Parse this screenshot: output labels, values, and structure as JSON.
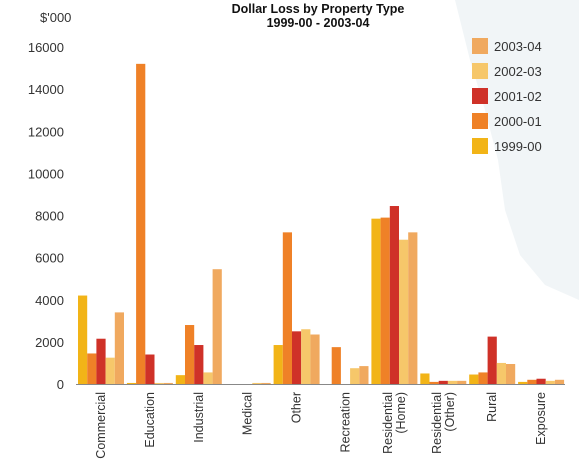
{
  "chart_data": {
    "type": "bar",
    "title": "Dollar Loss by Property Type",
    "subtitle": "1999-00 - 2003-04",
    "ylabel": "$'000",
    "xlabel": "",
    "ylim": [
      0,
      16000
    ],
    "yticks": [
      0,
      2000,
      4000,
      6000,
      8000,
      10000,
      12000,
      14000,
      16000
    ],
    "grid": false,
    "legend_position": "top-right",
    "categories": [
      [
        "Commercial"
      ],
      [
        "Education"
      ],
      [
        "Industrial"
      ],
      [
        "Medical"
      ],
      [
        "Other"
      ],
      [
        "Recreation"
      ],
      [
        "Residential",
        "(Home)"
      ],
      [
        "Residential",
        "(Other)"
      ],
      [
        "Rural"
      ],
      [
        "Exposure"
      ]
    ],
    "series": [
      {
        "name": "1999-00",
        "color": "#f2b417",
        "values": [
          4200,
          50,
          420,
          0,
          1850,
          0,
          7850,
          500,
          450,
          100
        ]
      },
      {
        "name": "2000-01",
        "color": "#ef8127",
        "values": [
          1450,
          15200,
          2800,
          0,
          7200,
          1750,
          7900,
          100,
          550,
          200
        ]
      },
      {
        "name": "2001-02",
        "color": "#cf3128",
        "values": [
          2150,
          1400,
          1850,
          0,
          2500,
          0,
          8450,
          150,
          2250,
          250
        ]
      },
      {
        "name": "2002-03",
        "color": "#f6c76a",
        "values": [
          1250,
          50,
          550,
          50,
          2600,
          750,
          6850,
          150,
          1000,
          150
        ]
      },
      {
        "name": "2003-04",
        "color": "#f0a95f",
        "values": [
          3400,
          50,
          5450,
          50,
          2350,
          850,
          7200,
          150,
          950,
          200
        ]
      }
    ],
    "legend_order": [
      "2003-04",
      "2002-03",
      "2001-02",
      "2000-01",
      "1999-00"
    ]
  }
}
